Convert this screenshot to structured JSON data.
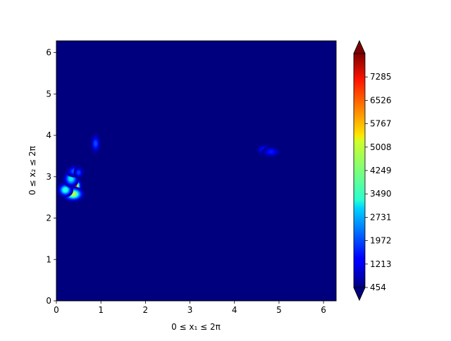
{
  "chart_data": {
    "type": "heatmap",
    "title": "",
    "xlabel": "0 ≤ x₁ ≤ 2π",
    "ylabel": "0 ≤ x₂ ≤ 2π",
    "xlim": [
      0,
      6.283
    ],
    "ylim": [
      0,
      6.283
    ],
    "x_ticks": [
      0,
      1,
      2,
      3,
      4,
      5,
      6
    ],
    "y_ticks": [
      0,
      1,
      2,
      3,
      4,
      5,
      6
    ],
    "colormap": "jet",
    "colorbar": {
      "range": [
        454,
        8044
      ],
      "ticks": [
        454,
        1213,
        1972,
        2731,
        3490,
        4249,
        5008,
        5767,
        6526,
        7285
      ],
      "extend": "both"
    },
    "background_value": 454,
    "hotspots": [
      {
        "x": 0.4,
        "y": 2.78,
        "peak": 8044,
        "sx": 0.045,
        "sy": 0.05
      },
      {
        "x": 0.38,
        "y": 2.58,
        "peak": 4900,
        "sx": 0.07,
        "sy": 0.05
      },
      {
        "x": 0.2,
        "y": 2.68,
        "peak": 3800,
        "sx": 0.05,
        "sy": 0.05
      },
      {
        "x": 0.33,
        "y": 2.95,
        "peak": 3300,
        "sx": 0.05,
        "sy": 0.06
      },
      {
        "x": 0.42,
        "y": 3.13,
        "peak": 2300,
        "sx": 0.06,
        "sy": 0.04
      },
      {
        "x": 0.5,
        "y": 3.1,
        "peak": 1900,
        "sx": 0.03,
        "sy": 0.04
      },
      {
        "x": 0.88,
        "y": 3.8,
        "peak": 2000,
        "sx": 0.03,
        "sy": 0.07
      },
      {
        "x": 4.67,
        "y": 3.65,
        "peak": 1700,
        "sx": 0.05,
        "sy": 0.035
      },
      {
        "x": 4.82,
        "y": 3.6,
        "peak": 1600,
        "sx": 0.06,
        "sy": 0.035
      }
    ]
  }
}
